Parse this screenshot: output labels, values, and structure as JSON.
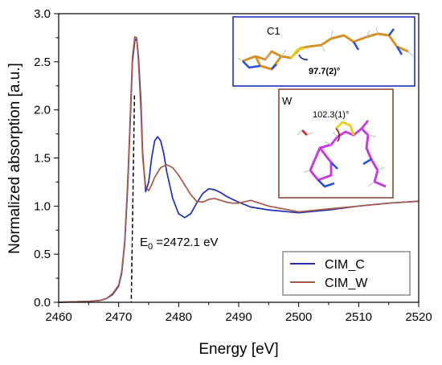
{
  "chart_data": {
    "type": "line",
    "xlabel": "Energy [eV]",
    "ylabel": "Normalized absorption [a.u.]",
    "xlim": [
      2460,
      2520
    ],
    "ylim": [
      0.0,
      3.0
    ],
    "xticks": [
      "2460",
      "2470",
      "2480",
      "2490",
      "2500",
      "2510",
      "2520"
    ],
    "yticks": [
      "0.0",
      "0.5",
      "1.0",
      "1.5",
      "2.0",
      "2.5",
      "3.0"
    ],
    "grid": false,
    "legend_position": "bottom-right",
    "annotation": {
      "prefix": "E",
      "subscript": "0",
      "text": " =2472.1 eV",
      "x": 2472.1
    },
    "insets": [
      {
        "label": "C1",
        "angle": "97.7(2)°",
        "border_color": "#2233bb",
        "label_color": "#c8962a",
        "angle_color": "#2a3db5"
      },
      {
        "label": "W",
        "angle": "102.3(1)°",
        "border_color": "#8b4a38",
        "label_color": "#b03cc8",
        "angle_color": "#a02020"
      }
    ],
    "series": [
      {
        "name": "CIM_C",
        "color": "#1f2fb8",
        "x": [
          2460,
          2465,
          2467,
          2468,
          2469,
          2470,
          2470.5,
          2471,
          2471.5,
          2472,
          2472.3,
          2472.7,
          2473,
          2473.3,
          2473.7,
          2474,
          2474.5,
          2475,
          2475.5,
          2476,
          2476.5,
          2477,
          2477.5,
          2478,
          2479,
          2480,
          2481,
          2482,
          2483,
          2484,
          2485,
          2486,
          2487,
          2488,
          2489,
          2490,
          2492,
          2495,
          2500,
          2505,
          2510,
          2515,
          2520
        ],
        "y": [
          0.0,
          0.01,
          0.02,
          0.04,
          0.08,
          0.17,
          0.3,
          0.6,
          1.2,
          2.0,
          2.5,
          2.72,
          2.74,
          2.55,
          2.1,
          1.55,
          1.15,
          1.25,
          1.5,
          1.68,
          1.72,
          1.68,
          1.55,
          1.36,
          1.08,
          0.92,
          0.88,
          0.92,
          1.03,
          1.13,
          1.18,
          1.17,
          1.14,
          1.1,
          1.07,
          1.04,
          0.99,
          0.96,
          0.93,
          0.96,
          1.0,
          1.03,
          1.05
        ]
      },
      {
        "name": "CIM_W",
        "color": "#a85a4a",
        "x": [
          2460,
          2465,
          2467,
          2468,
          2469,
          2470,
          2470.5,
          2471,
          2471.5,
          2472,
          2472.3,
          2472.7,
          2473,
          2473.3,
          2473.7,
          2474,
          2474.5,
          2475,
          2475.5,
          2476,
          2477,
          2478,
          2479,
          2480,
          2481,
          2482,
          2483,
          2484,
          2485,
          2486,
          2487,
          2488,
          2489,
          2490,
          2492,
          2495,
          2500,
          2505,
          2510,
          2515,
          2520
        ],
        "y": [
          0.0,
          0.01,
          0.02,
          0.04,
          0.09,
          0.18,
          0.32,
          0.62,
          1.25,
          2.05,
          2.55,
          2.76,
          2.75,
          2.5,
          2.0,
          1.5,
          1.2,
          1.16,
          1.22,
          1.3,
          1.4,
          1.43,
          1.4,
          1.32,
          1.22,
          1.12,
          1.05,
          1.04,
          1.07,
          1.08,
          1.06,
          1.04,
          1.03,
          1.03,
          1.06,
          1.0,
          0.94,
          0.97,
          1.0,
          1.03,
          1.05
        ]
      }
    ]
  }
}
